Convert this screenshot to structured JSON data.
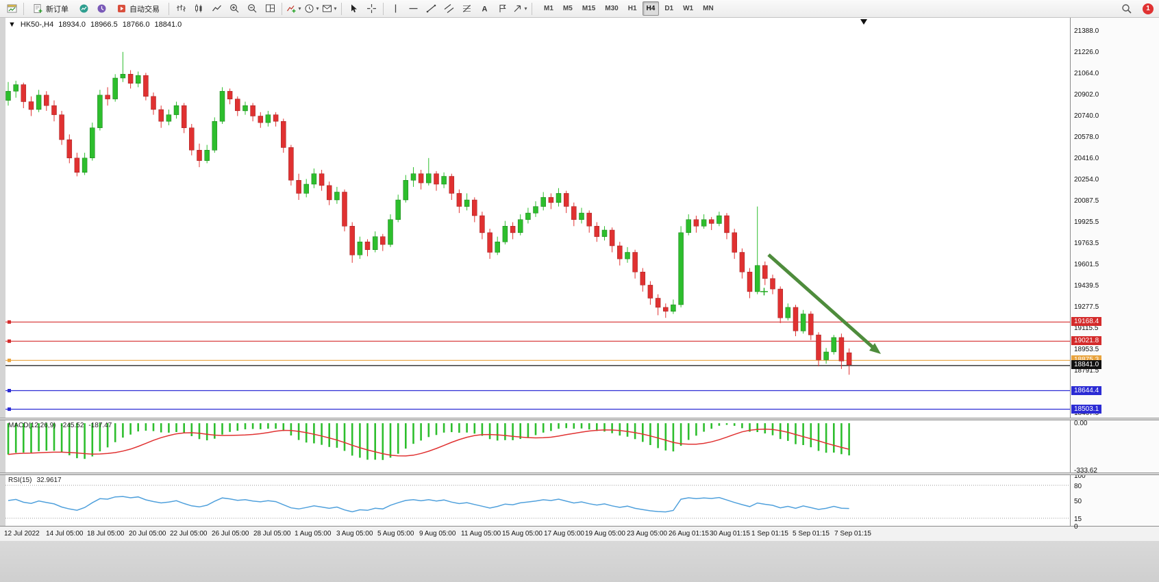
{
  "toolbar": {
    "new_order_label": "新订单",
    "autotrading_label": "自动交易",
    "timeframes": [
      "M1",
      "M5",
      "M15",
      "M30",
      "H1",
      "H4",
      "D1",
      "W1",
      "MN"
    ],
    "active_timeframe": "H4",
    "notification_count": "1",
    "icon_names": [
      "chart-window",
      "new-order",
      "charts",
      "market-watch",
      "autotrading",
      "bar-chart",
      "candlestick-chart",
      "line-chart",
      "zoom-in",
      "zoom-out",
      "tile-windows",
      "indicators",
      "periods",
      "templates",
      "cursor",
      "crosshair",
      "vertical-line",
      "horizontal-line",
      "trendline",
      "equidistant-channel",
      "fibonacci",
      "text",
      "text-label",
      "arrows",
      "search",
      "notifications"
    ]
  },
  "chart": {
    "header": {
      "expander": "▼",
      "symbol": "HK50-,H4",
      "open": "18934.0",
      "high": "18966.5",
      "low": "18766.0",
      "close": "18841.0"
    },
    "current_price": {
      "value": 18841.0,
      "label": "18841.0",
      "color": "#111111"
    },
    "black_line_price": 18836,
    "hlines": [
      {
        "price": 19168.4,
        "label": "19168.4",
        "color": "#d42b2b"
      },
      {
        "price": 19021.8,
        "label": "19021.8",
        "color": "#d42b2b"
      },
      {
        "price": 18875.3,
        "label": "18875.3",
        "color": "#e8a33d"
      },
      {
        "price": 18644.4,
        "label": "18644.4",
        "color": "#2b2bd4"
      },
      {
        "price": 18503.1,
        "label": "18503.1",
        "color": "#2b2bd4"
      }
    ],
    "marker_cross": {
      "price": 19400,
      "color": "#22aa22"
    },
    "trend_arrow": {
      "color": "#4e8c3c"
    },
    "price_axis_labels": [
      "21388.0",
      "21226.0",
      "21064.0",
      "20902.0",
      "20740.0",
      "20578.0",
      "20416.0",
      "20254.0",
      "20087.5",
      "19925.5",
      "19763.5",
      "19601.5",
      "19439.5",
      "19277.5",
      "19115.5",
      "18953.5",
      "18791.5",
      "18467.5"
    ]
  },
  "chart_data": {
    "type": "candlestick",
    "symbol": "HK50-",
    "timeframe": "H4",
    "up_color": "#2dbe2d",
    "down_color": "#e03131",
    "candles": [
      [
        20860,
        21000,
        20820,
        20930
      ],
      [
        20930,
        21010,
        20880,
        20980
      ],
      [
        20980,
        20995,
        20800,
        20850
      ],
      [
        20850,
        20890,
        20740,
        20790
      ],
      [
        20790,
        20940,
        20770,
        20900
      ],
      [
        20900,
        20930,
        20780,
        20820
      ],
      [
        20820,
        20860,
        20700,
        20750
      ],
      [
        20750,
        20780,
        20520,
        20560
      ],
      [
        20560,
        20600,
        20380,
        20420
      ],
      [
        20420,
        20460,
        20280,
        20310
      ],
      [
        20310,
        20460,
        20290,
        20420
      ],
      [
        20420,
        20690,
        20400,
        20650
      ],
      [
        20650,
        20940,
        20630,
        20900
      ],
      [
        20900,
        20960,
        20820,
        20870
      ],
      [
        20870,
        21060,
        20850,
        21030
      ],
      [
        21030,
        21230,
        21000,
        21060
      ],
      [
        21060,
        21090,
        20950,
        20990
      ],
      [
        20990,
        21080,
        20960,
        21050
      ],
      [
        21050,
        21070,
        20860,
        20890
      ],
      [
        20890,
        20920,
        20750,
        20790
      ],
      [
        20790,
        20820,
        20650,
        20700
      ],
      [
        20700,
        20790,
        20670,
        20750
      ],
      [
        20750,
        20850,
        20720,
        20820
      ],
      [
        20820,
        20840,
        20610,
        20650
      ],
      [
        20650,
        20680,
        20440,
        20480
      ],
      [
        20480,
        20530,
        20350,
        20400
      ],
      [
        20400,
        20520,
        20380,
        20480
      ],
      [
        20480,
        20730,
        20460,
        20700
      ],
      [
        20700,
        20960,
        20680,
        20930
      ],
      [
        20930,
        20950,
        20830,
        20870
      ],
      [
        20870,
        20890,
        20740,
        20780
      ],
      [
        20780,
        20850,
        20750,
        20820
      ],
      [
        20820,
        20840,
        20700,
        20740
      ],
      [
        20740,
        20770,
        20650,
        20690
      ],
      [
        20690,
        20780,
        20660,
        20750
      ],
      [
        20750,
        20770,
        20660,
        20700
      ],
      [
        20700,
        20720,
        20460,
        20500
      ],
      [
        20500,
        20520,
        20210,
        20250
      ],
      [
        20250,
        20300,
        20100,
        20150
      ],
      [
        20150,
        20260,
        20120,
        20220
      ],
      [
        20220,
        20340,
        20190,
        20300
      ],
      [
        20300,
        20330,
        20170,
        20210
      ],
      [
        20210,
        20240,
        20060,
        20100
      ],
      [
        20100,
        20200,
        20070,
        20160
      ],
      [
        20160,
        20180,
        19860,
        19900
      ],
      [
        19900,
        19930,
        19620,
        19680
      ],
      [
        19680,
        19820,
        19650,
        19780
      ],
      [
        19780,
        19800,
        19670,
        19720
      ],
      [
        19720,
        19860,
        19700,
        19820
      ],
      [
        19820,
        19840,
        19710,
        19760
      ],
      [
        19760,
        19990,
        19740,
        19950
      ],
      [
        19950,
        20140,
        19930,
        20100
      ],
      [
        20100,
        20290,
        20080,
        20250
      ],
      [
        20250,
        20350,
        20200,
        20300
      ],
      [
        20300,
        20330,
        20180,
        20230
      ],
      [
        20230,
        20420,
        20210,
        20300
      ],
      [
        20300,
        20320,
        20170,
        20220
      ],
      [
        20220,
        20310,
        20190,
        20280
      ],
      [
        20280,
        20300,
        20100,
        20150
      ],
      [
        20150,
        20180,
        20000,
        20050
      ],
      [
        20050,
        20150,
        20020,
        20100
      ],
      [
        20100,
        20120,
        19930,
        19980
      ],
      [
        19980,
        20010,
        19800,
        19850
      ],
      [
        19850,
        19880,
        19650,
        19700
      ],
      [
        19700,
        19820,
        19680,
        19780
      ],
      [
        19780,
        19940,
        19760,
        19900
      ],
      [
        19900,
        19930,
        19800,
        19850
      ],
      [
        19850,
        19990,
        19830,
        19950
      ],
      [
        19950,
        20040,
        19920,
        20000
      ],
      [
        20000,
        20090,
        19970,
        20050
      ],
      [
        20050,
        20160,
        20020,
        20120
      ],
      [
        20120,
        20150,
        20030,
        20080
      ],
      [
        20080,
        20190,
        20050,
        20150
      ],
      [
        20150,
        20170,
        20000,
        20050
      ],
      [
        20050,
        20080,
        19900,
        19950
      ],
      [
        19950,
        20040,
        19920,
        20000
      ],
      [
        20000,
        20020,
        19850,
        19900
      ],
      [
        19900,
        19930,
        19780,
        19820
      ],
      [
        19820,
        19900,
        19790,
        19870
      ],
      [
        19870,
        19890,
        19700,
        19750
      ],
      [
        19750,
        19780,
        19600,
        19650
      ],
      [
        19650,
        19740,
        19620,
        19700
      ],
      [
        19700,
        19720,
        19500,
        19550
      ],
      [
        19550,
        19580,
        19400,
        19450
      ],
      [
        19450,
        19480,
        19300,
        19350
      ],
      [
        19350,
        19380,
        19220,
        19280
      ],
      [
        19280,
        19310,
        19200,
        19250
      ],
      [
        19250,
        19340,
        19230,
        19300
      ],
      [
        19300,
        19900,
        19280,
        19850
      ],
      [
        19850,
        19990,
        19830,
        19950
      ],
      [
        19950,
        19980,
        19850,
        19900
      ],
      [
        19900,
        19990,
        19880,
        19950
      ],
      [
        19950,
        19970,
        19870,
        19920
      ],
      [
        19920,
        20010,
        19900,
        19980
      ],
      [
        19980,
        20000,
        19800,
        19850
      ],
      [
        19850,
        19880,
        19650,
        19700
      ],
      [
        19700,
        19730,
        19500,
        19550
      ],
      [
        19550,
        19580,
        19350,
        19400
      ],
      [
        19400,
        20050,
        19380,
        19600
      ],
      [
        19600,
        19630,
        19450,
        19500
      ],
      [
        19500,
        19530,
        19380,
        19420
      ],
      [
        19420,
        19440,
        19160,
        19200
      ],
      [
        19200,
        19310,
        19180,
        19280
      ],
      [
        19280,
        19300,
        19060,
        19100
      ],
      [
        19100,
        19260,
        19080,
        19230
      ],
      [
        19230,
        19250,
        19030,
        19070
      ],
      [
        19070,
        19090,
        18830,
        18880
      ],
      [
        18880,
        18970,
        18850,
        18940
      ],
      [
        18940,
        19070,
        18920,
        19050
      ],
      [
        19050,
        19080,
        18810,
        18870
      ],
      [
        18934,
        18966.5,
        18766,
        18841
      ]
    ],
    "x_labels": [
      "12 Jul 2022",
      "14 Jul 05:00",
      "18 Jul 05:00",
      "20 Jul 05:00",
      "22 Jul 05:00",
      "26 Jul 05:00",
      "28 Jul 05:00",
      "1 Aug 05:00",
      "3 Aug 05:00",
      "5 Aug 05:00",
      "9 Aug 05:00",
      "11 Aug 05:00",
      "15 Aug 05:00",
      "17 Aug 05:00",
      "19 Aug 05:00",
      "23 Aug 05:00",
      "26 Aug 01:15",
      "30 Aug 01:15",
      "1 Sep 01:15",
      "5 Sep 01:15",
      "7 Sep 01:15"
    ]
  },
  "macd": {
    "name": "MACD(12,26,9)",
    "value_main": "-245.52",
    "value_signal": "-187.47",
    "fast": 12,
    "slow": 26,
    "signal": 9,
    "axis_labels": [
      "0.00",
      "-333.62"
    ],
    "axis_values": [
      0,
      -333.62
    ],
    "histogram_color": "#2dbe2d",
    "signal_color": "#e03131"
  },
  "rsi": {
    "name": "RSI(15)",
    "value": "32.9617",
    "period": 15,
    "axis_labels": [
      "100",
      "80",
      "50",
      "15",
      "0"
    ],
    "axis_values": [
      100,
      80,
      50,
      15,
      0
    ],
    "levels": [
      80,
      15
    ],
    "line_color": "#4fa0dc"
  }
}
